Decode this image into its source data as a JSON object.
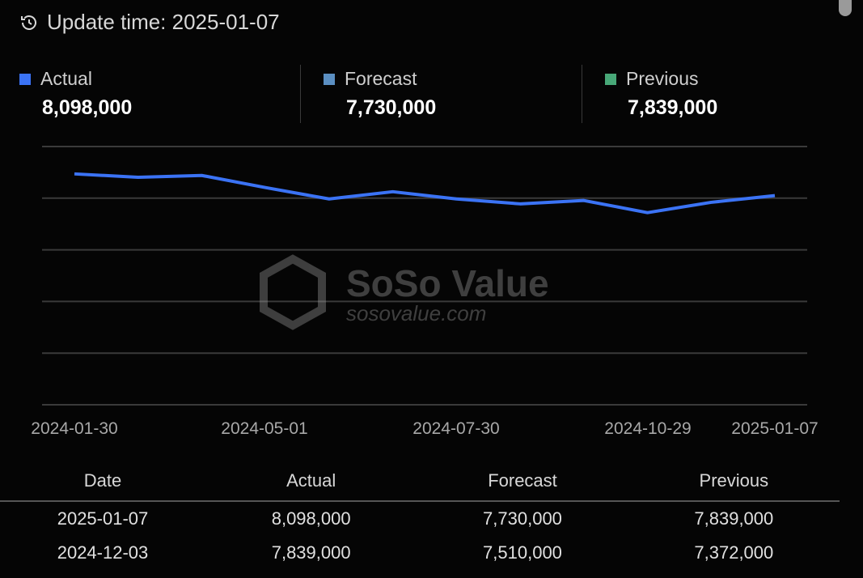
{
  "header": {
    "icon": "history-icon",
    "update_label": "Update time: 2025-01-07"
  },
  "legend": [
    {
      "name": "Actual",
      "value": "8,098,000",
      "color": "#3b73f5"
    },
    {
      "name": "Forecast",
      "value": "7,730,000",
      "color": "#5b8fc2"
    },
    {
      "name": "Previous",
      "value": "7,839,000",
      "color": "#48a878"
    }
  ],
  "watermark": {
    "brand": "SoSo Value",
    "url": "sosovalue.com"
  },
  "chart_data": {
    "type": "line",
    "x_tick_labels": [
      "2024-01-30",
      "2024-05-01",
      "2024-07-30",
      "2024-10-29",
      "2025-01-07"
    ],
    "series": [
      {
        "values": [
          8.94,
          8.81,
          8.88,
          8.41,
          7.97,
          8.25,
          7.97,
          7.78,
          7.91,
          7.44,
          7.839,
          8.098
        ],
        "color": "#3b73f5"
      }
    ],
    "ylim": [
      0,
      10
    ],
    "y_unit": "million",
    "grid": true
  },
  "table": {
    "headers": [
      "Date",
      "Actual",
      "Forecast",
      "Previous"
    ],
    "rows": [
      [
        "2025-01-07",
        "8,098,000",
        "7,730,000",
        "7,839,000"
      ],
      [
        "2024-12-03",
        "7,839,000",
        "7,510,000",
        "7,372,000"
      ]
    ]
  }
}
